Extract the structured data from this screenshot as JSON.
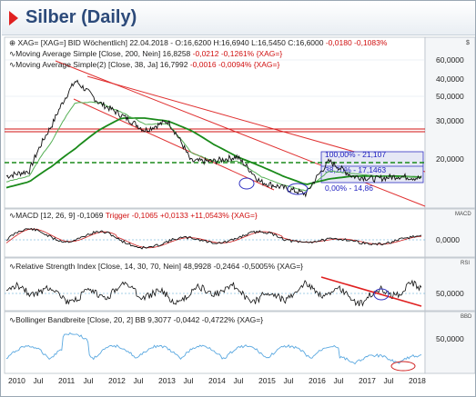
{
  "title": "Silber (Daily)",
  "panels": {
    "price": {
      "legend_lines": [
        {
          "name": "XAG=",
          "text": "[XAG=] BID Wöchentlich] 22.04.2018 - O:16,6200 H:16,6940 L:16,5450 C:16,6000 ",
          "chg": "-0,0180 -0,1083%"
        },
        {
          "name": "ma200",
          "text": "Moving Average Simple [Close, 200, Nein] 16,8258 ",
          "chg": "-0,0212 -0,1261% {XAG=}"
        },
        {
          "name": "ma38",
          "text": "Moving Average Simple(2) [Close, 38, Ja] 16,7992 ",
          "chg": "-0,0016 -0,0094% {XAG=}"
        }
      ],
      "fib_labels": {
        "top": "100,00% - 21,107",
        "mid": "38,20% - 17,1463",
        "bottom": "0,00% - 14,86"
      },
      "y_ticks": [
        "60,0000",
        "50,0000",
        "40,0000",
        "30,0000",
        "20,0000"
      ],
      "currency_label": "$"
    },
    "macd": {
      "legend": "MACD [12, 26, 9] -0,1069 ",
      "trigger": "Trigger -0,1065 +0,0133 +11,0543% {XAG=}",
      "y_tick": "0,0000",
      "tag": "MACD"
    },
    "rsi": {
      "legend": "Relative Strength Index [Close, 14, 30, 70, Nein] 48,9928 -0,2464 -0,5005% {XAG=}",
      "y_tick": "50,0000",
      "tag": "RSI"
    },
    "bb": {
      "legend": "Bollinger Bandbreite [Close, 20, 2] BB 9,3077 -0,0442 -0,4722% {XAG=}",
      "y_tick": "50,0000",
      "tag": "BBD"
    }
  },
  "x_labels": [
    "2010",
    "Jul",
    "2011",
    "Jul",
    "2012",
    "Jul",
    "2013",
    "Jul",
    "2014",
    "Jul",
    "2015",
    "Jul",
    "2016",
    "Jul",
    "2017",
    "Jul",
    "2018"
  ],
  "chart_data": {
    "type": "line",
    "title": "Silber (Daily)",
    "xlabel": "",
    "ylabel": "",
    "y_scale": "log",
    "ylim": [
      13,
      70
    ],
    "x": [
      "2010-01",
      "2010-07",
      "2011-01",
      "2011-04",
      "2011-07",
      "2012-01",
      "2012-07",
      "2013-01",
      "2013-07",
      "2014-01",
      "2014-07",
      "2015-01",
      "2015-07",
      "2016-01",
      "2016-07",
      "2017-01",
      "2017-07",
      "2018-01",
      "2018-04"
    ],
    "series": [
      {
        "name": "XAG=",
        "values": [
          17,
          18,
          30,
          48,
          38,
          33,
          28,
          31,
          20,
          20,
          21,
          16,
          15,
          14,
          20,
          17,
          16.5,
          17,
          16.6
        ]
      },
      {
        "name": "Moving Average Simple [Close, 200, Nein]",
        "values": [
          15,
          16,
          19,
          23,
          28,
          32,
          32,
          31,
          28,
          24,
          21,
          19,
          17,
          15.5,
          16.5,
          17,
          17,
          17,
          16.8
        ]
      },
      {
        "name": "Moving Average Simple(2) [Close, 38, Ja]",
        "values": [
          16,
          17,
          25,
          38,
          38,
          34,
          30,
          30,
          22,
          20,
          20,
          17,
          15.5,
          14.5,
          18,
          17.5,
          17,
          16.9,
          16.8
        ]
      }
    ],
    "horizontal_lines": [
      {
        "value": 26,
        "color": "#d01010"
      },
      {
        "value": 18.5,
        "color": "#1a8a1a",
        "style": "dashed"
      }
    ],
    "fibonacci": [
      {
        "label": "100,00% - 21,107",
        "value": 21.107
      },
      {
        "label": "38,20% - 17,1463",
        "value": 17.1463
      },
      {
        "label": "0,00% - 14,86",
        "value": 14.86
      }
    ]
  }
}
